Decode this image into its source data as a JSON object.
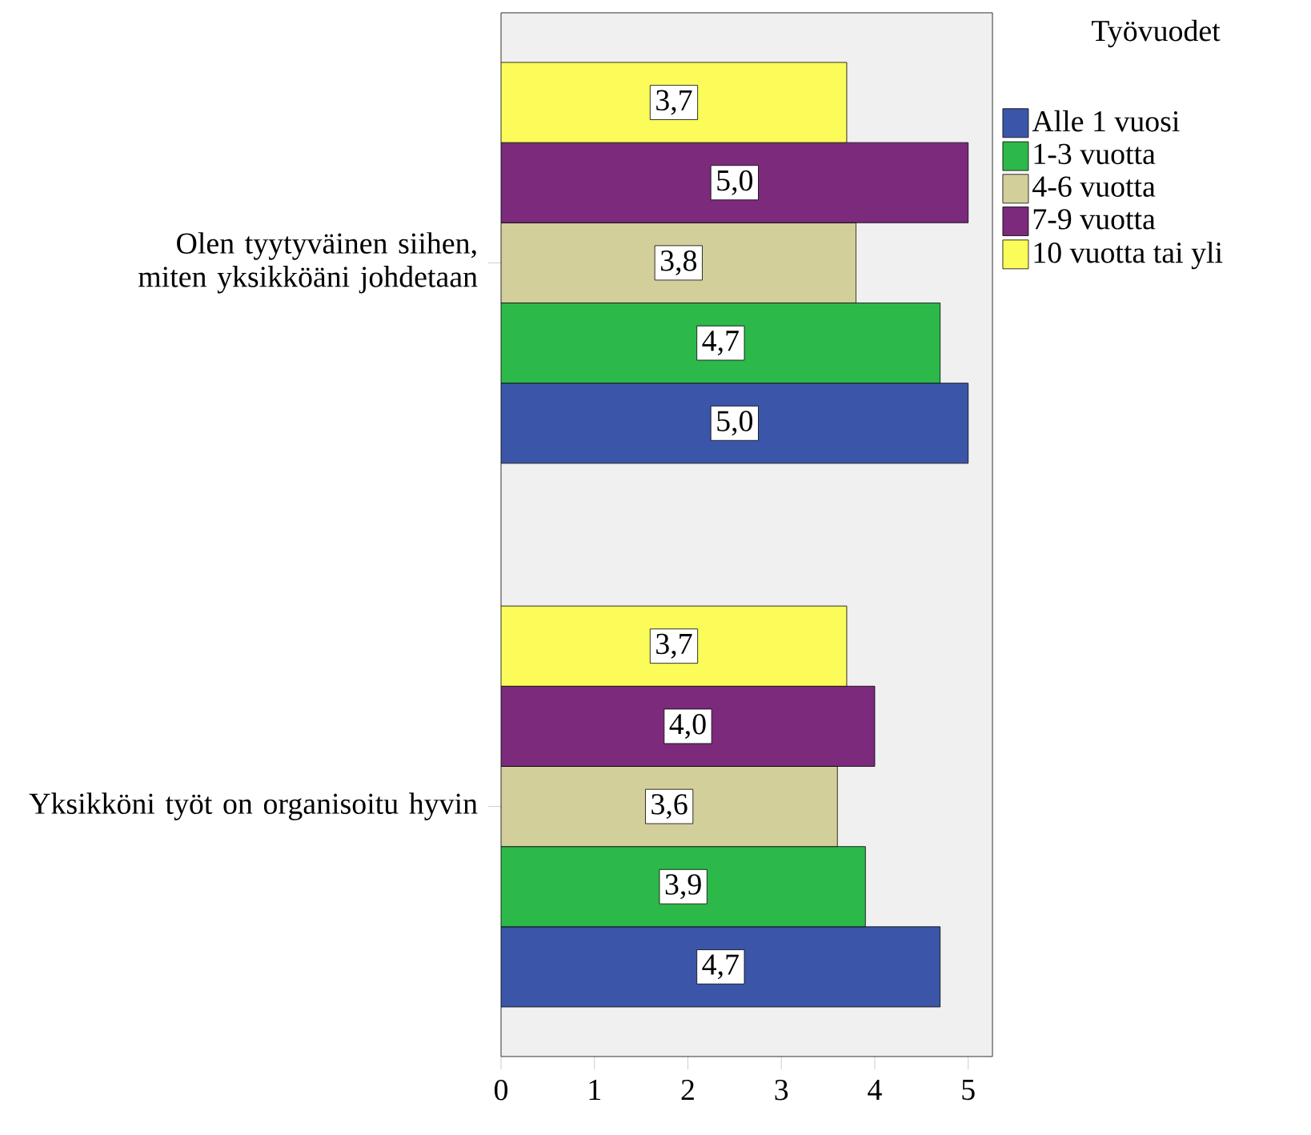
{
  "chart_data": {
    "type": "bar",
    "orientation": "horizontal",
    "legend_title": "Työvuodet",
    "categories": [
      "Olen tyytyväinen siihen, miten yksikköäni johdetaan",
      "Yksikköni työt on organisoitu hyvin"
    ],
    "series": [
      {
        "name": "Alle 1 vuosi",
        "color": "#3b56a8",
        "values": [
          5.0,
          4.7
        ],
        "value_labels": [
          "5,0",
          "4,7"
        ]
      },
      {
        "name": "1-3 vuotta",
        "color": "#2db84a",
        "values": [
          4.7,
          3.9
        ],
        "value_labels": [
          "4,7",
          "3,9"
        ]
      },
      {
        "name": "4-6 vuotta",
        "color": "#d3cf9b",
        "values": [
          3.8,
          3.6
        ],
        "value_labels": [
          "3,8",
          "3,6"
        ]
      },
      {
        "name": "7-9 vuotta",
        "color": "#7b2a7c",
        "values": [
          5.0,
          4.0
        ],
        "value_labels": [
          "5,0",
          "4,0"
        ]
      },
      {
        "name": "10 vuotta tai yli",
        "color": "#fbfb5a",
        "values": [
          3.7,
          3.7
        ],
        "value_labels": [
          "3,7",
          "3,7"
        ]
      }
    ],
    "xlim": [
      0,
      5.26
    ],
    "xticks": [
      0,
      1,
      2,
      3,
      4,
      5
    ],
    "grid": false,
    "legend": "top right"
  }
}
